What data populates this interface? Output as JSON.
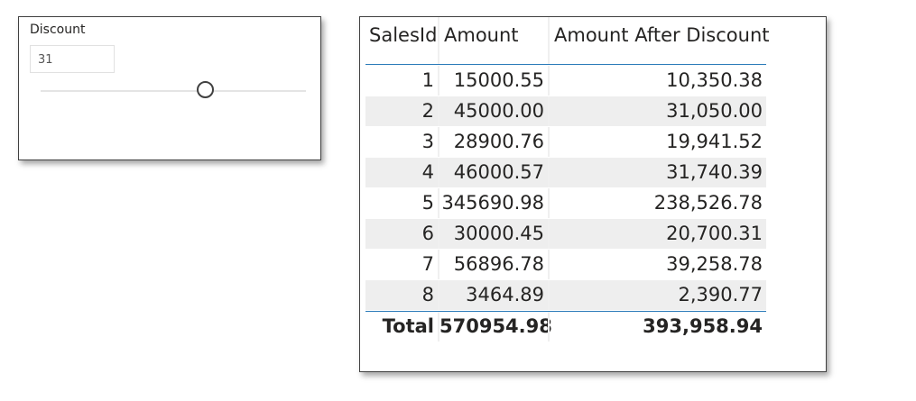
{
  "slicer": {
    "title": "Discount",
    "value": "31",
    "slider_position": 0.62
  },
  "table": {
    "columns": [
      "SalesId",
      "Amount",
      "Amount After Discount"
    ],
    "rows": [
      {
        "id": "1",
        "amount": "15000.55",
        "after": "10,350.38"
      },
      {
        "id": "2",
        "amount": "45000.00",
        "after": "31,050.00"
      },
      {
        "id": "3",
        "amount": "28900.76",
        "after": "19,941.52"
      },
      {
        "id": "4",
        "amount": "46000.57",
        "after": "31,740.39"
      },
      {
        "id": "5",
        "amount": "345690.98",
        "after": "238,526.78"
      },
      {
        "id": "6",
        "amount": "30000.45",
        "after": "20,700.31"
      },
      {
        "id": "7",
        "amount": "56896.78",
        "after": "39,258.78"
      },
      {
        "id": "8",
        "amount": "3464.89",
        "after": "2,390.77"
      }
    ],
    "total": {
      "label": "Total",
      "amount": "570954.98",
      "after": "393,958.94"
    }
  },
  "colors": {
    "accent": "#2b7bb9",
    "row_alt": "#eeeeee",
    "border": "#404040"
  }
}
